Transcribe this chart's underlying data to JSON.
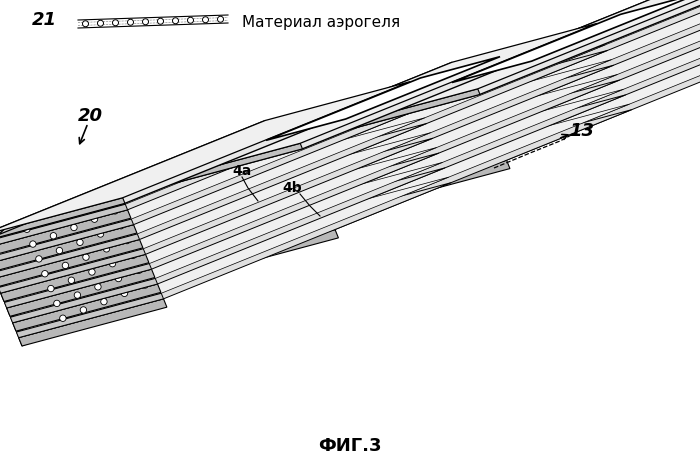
{
  "title": "ФИГ.3",
  "legend_label": "21",
  "legend_text": "Материал аэрогеля",
  "label_20": "20",
  "label_13": "13",
  "label_4a": "4a",
  "label_4b": "4b",
  "bg_color": "#ffffff",
  "line_color": "#000000"
}
